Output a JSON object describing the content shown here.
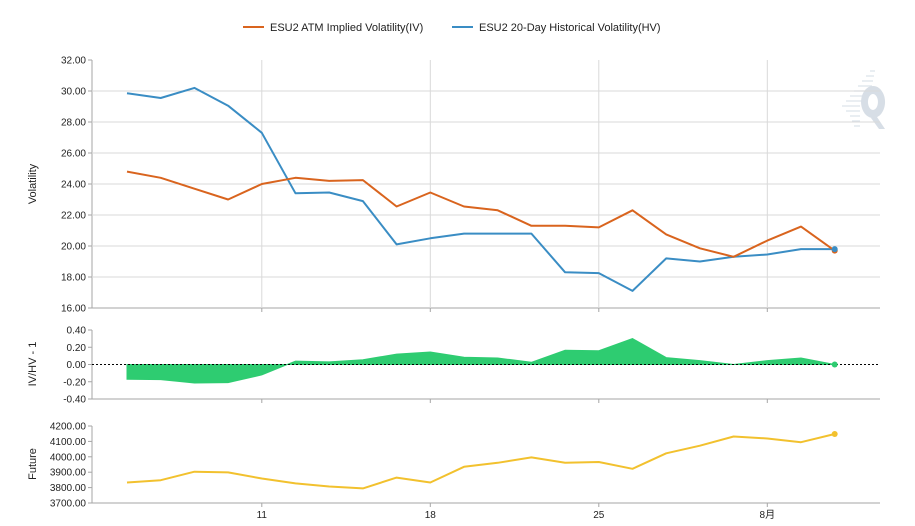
{
  "legend": {
    "iv_label": "ESU2 ATM Implied Volatility(IV)",
    "hv_label": "ESU2 20-Day Historical Volatility(HV)"
  },
  "colors": {
    "iv": "#d9641e",
    "hv": "#3a8dc4",
    "ratio": "#2ecc71",
    "future": "#f2c12e",
    "grid": "#d9d9d9",
    "axis": "#a6a6a6"
  },
  "x_ticks": [
    "11",
    "18",
    "25",
    "8月"
  ],
  "chart_data": [
    {
      "type": "line",
      "panel": "volatility",
      "ylabel": "Volatility",
      "ylim": [
        16,
        32
      ],
      "y_ticks": [
        "32.00",
        "30.00",
        "28.00",
        "26.00",
        "24.00",
        "22.00",
        "20.00",
        "18.00",
        "16.00"
      ],
      "x": [
        "Jul 5",
        "Jul 6",
        "Jul 7",
        "Jul 8",
        "Jul 11",
        "Jul 12",
        "Jul 13",
        "Jul 14",
        "Jul 15",
        "Jul 18",
        "Jul 19",
        "Jul 20",
        "Jul 21",
        "Jul 22",
        "Jul 25",
        "Jul 26",
        "Jul 27",
        "Jul 28",
        "Jul 29",
        "Aug 1",
        "Aug 2",
        "Aug 3"
      ],
      "series": [
        {
          "name": "ESU2 ATM Implied Volatility(IV)",
          "values": [
            24.8,
            24.4,
            23.7,
            23.0,
            24.0,
            24.4,
            24.2,
            24.25,
            22.55,
            23.45,
            22.55,
            22.3,
            21.3,
            21.3,
            21.2,
            22.3,
            20.75,
            19.85,
            19.3,
            20.35,
            21.25,
            19.7
          ]
        },
        {
          "name": "ESU2 20-Day Historical Volatility(HV)",
          "values": [
            29.85,
            29.55,
            30.2,
            29.05,
            27.3,
            23.4,
            23.45,
            22.9,
            20.1,
            20.5,
            20.8,
            20.8,
            20.8,
            18.3,
            18.25,
            17.1,
            19.2,
            19.0,
            19.3,
            19.45,
            19.8,
            19.8
          ]
        }
      ]
    },
    {
      "type": "area",
      "panel": "ratio",
      "ylabel": "IV/HV - 1",
      "ylim": [
        -0.4,
        0.4
      ],
      "y_ticks": [
        "0.40",
        "0.20",
        "0.00",
        "-0.20",
        "-0.40"
      ],
      "values": [
        -0.17,
        -0.175,
        -0.215,
        -0.21,
        -0.12,
        0.04,
        0.03,
        0.055,
        0.12,
        0.145,
        0.085,
        0.075,
        0.025,
        0.165,
        0.16,
        0.3,
        0.08,
        0.045,
        0.0,
        0.045,
        0.075,
        0.0
      ]
    },
    {
      "type": "line",
      "panel": "future",
      "ylabel": "Future",
      "ylim": [
        3700,
        4200
      ],
      "y_ticks": [
        "4200.00",
        "4100.00",
        "4000.00",
        "3900.00",
        "3800.00",
        "3700.00"
      ],
      "values": [
        3833,
        3848,
        3903,
        3899,
        3859,
        3827,
        3807,
        3795,
        3865,
        3833,
        3935,
        3961,
        3996,
        3962,
        3966,
        3922,
        4023,
        4072,
        4132,
        4119,
        4095,
        4148
      ]
    }
  ]
}
